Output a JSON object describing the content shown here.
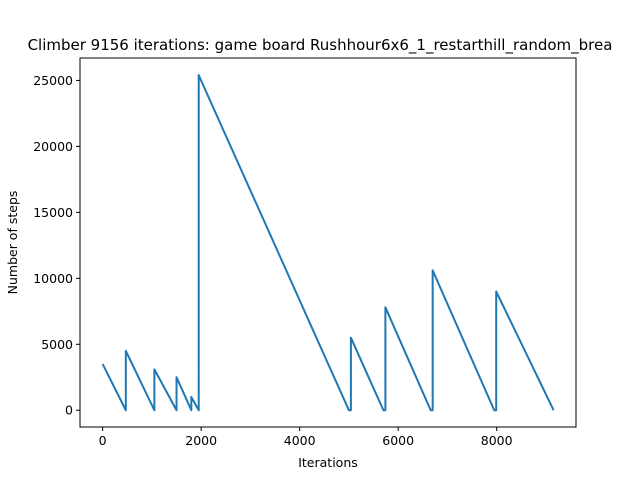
{
  "chart_data": {
    "type": "line",
    "title": "Climber 9156 iterations: game board Rushhour6x6_1_restarthill_random_brea",
    "xlabel": "Iterations",
    "ylabel": "Number of steps",
    "xlim": [
      -460,
      9610
    ],
    "ylim": [
      -1270,
      26700
    ],
    "xticks": [
      0,
      2000,
      4000,
      6000,
      8000
    ],
    "yticks": [
      0,
      5000,
      10000,
      15000,
      20000,
      25000
    ],
    "grid": false,
    "legend": "none",
    "series": [
      {
        "color": "#1f77b4",
        "points": [
          [
            0,
            3500
          ],
          [
            470,
            0
          ],
          [
            470,
            4500
          ],
          [
            1050,
            0
          ],
          [
            1050,
            3100
          ],
          [
            1500,
            0
          ],
          [
            1500,
            2500
          ],
          [
            1800,
            0
          ],
          [
            1800,
            1000
          ],
          [
            1950,
            0
          ],
          [
            1950,
            25400
          ],
          [
            5000,
            0
          ],
          [
            5040,
            0
          ],
          [
            5040,
            5500
          ],
          [
            5700,
            0
          ],
          [
            5740,
            0
          ],
          [
            5740,
            7800
          ],
          [
            6660,
            0
          ],
          [
            6700,
            0
          ],
          [
            6700,
            10600
          ],
          [
            7950,
            0
          ],
          [
            7990,
            0
          ],
          [
            7990,
            9000
          ],
          [
            9156,
            0
          ]
        ]
      }
    ]
  }
}
